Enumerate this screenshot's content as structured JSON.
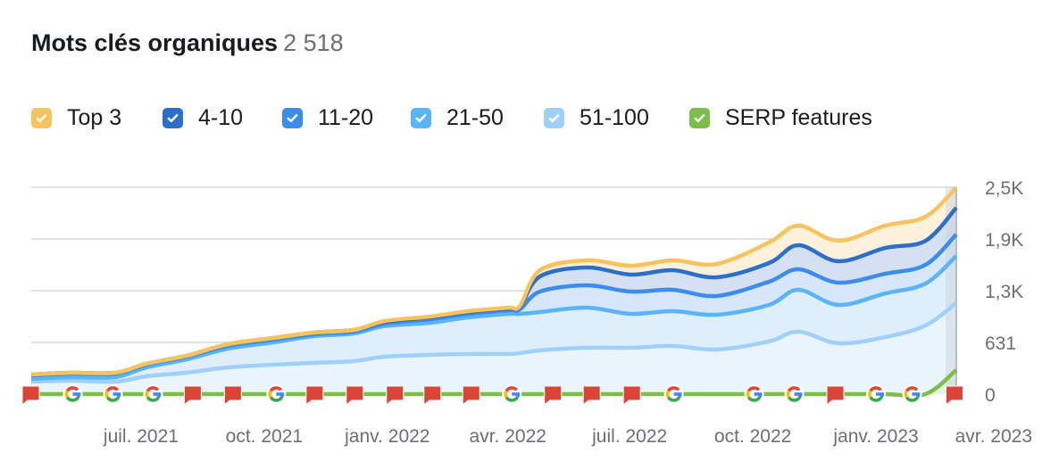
{
  "header": {
    "title": "Mots clés organiques",
    "count": "2 518"
  },
  "legend": [
    {
      "label": "Top 3",
      "color": "#f6c35c",
      "checked": true
    },
    {
      "label": "4-10",
      "color": "#2a6fc9",
      "checked": true
    },
    {
      "label": "11-20",
      "color": "#3b8ced",
      "checked": true
    },
    {
      "label": "21-50",
      "color": "#5ab4f9",
      "checked": true
    },
    {
      "label": "51-100",
      "color": "#9fd0fb",
      "checked": true
    },
    {
      "label": "SERP features",
      "color": "#7bbf4a",
      "checked": true
    }
  ],
  "chart_data": {
    "type": "area",
    "stacked_display": "cumulative",
    "x": [
      "2021-04-10",
      "2021-05-10",
      "2021-06-12",
      "2021-07-05",
      "2021-08-04",
      "2021-09-04",
      "2021-10-08",
      "2021-11-07",
      "2021-12-07",
      "2021-12-30",
      "2022-02-02",
      "2022-03-02",
      "2022-04-01",
      "2022-04-10",
      "2022-04-25",
      "2022-05-30",
      "2022-07-02",
      "2022-08-02",
      "2022-09-04",
      "2022-10-13",
      "2022-11-04",
      "2022-12-04",
      "2023-01-08",
      "2023-02-07",
      "2023-03-02"
    ],
    "series": [
      {
        "name": "Top 3",
        "color": "#f6c35c",
        "fill": "#fdf1dc",
        "values": [
          239,
          261,
          261,
          370,
          468,
          609,
          685,
          751,
          783,
          892,
          947,
          1012,
          1055,
          1077,
          1512,
          1632,
          1567,
          1632,
          1588,
          1850,
          2056,
          1871,
          2056,
          2165,
          2518
        ]
      },
      {
        "name": "4-10",
        "color": "#2a6fc9",
        "fill": "#d5e1f3",
        "values": [
          239,
          261,
          261,
          370,
          468,
          609,
          685,
          751,
          783,
          881,
          936,
          1001,
          1044,
          1066,
          1436,
          1545,
          1458,
          1512,
          1425,
          1599,
          1817,
          1621,
          1784,
          1871,
          2274
        ]
      },
      {
        "name": "11-20",
        "color": "#3b8ced",
        "fill": "#d6e7fb",
        "values": [
          228,
          250,
          250,
          359,
          457,
          588,
          664,
          729,
          762,
          860,
          914,
          979,
          1023,
          1034,
          1251,
          1327,
          1251,
          1273,
          1197,
          1371,
          1523,
          1360,
          1469,
          1578,
          1948
        ]
      },
      {
        "name": "21-50",
        "color": "#5ab4f9",
        "fill": "#ddeefc",
        "values": [
          185,
          207,
          207,
          326,
          424,
          555,
          631,
          707,
          740,
          830,
          870,
          935,
          979,
          979,
          1001,
          1055,
          979,
          1012,
          968,
          1088,
          1273,
          1088,
          1229,
          1349,
          1686
        ]
      },
      {
        "name": "51-100",
        "color": "#9fd0fb",
        "fill": "#eaf4fd",
        "values": [
          152,
          163,
          152,
          218,
          261,
          326,
          359,
          381,
          403,
          457,
          479,
          490,
          490,
          500,
          533,
          566,
          566,
          588,
          544,
          642,
          762,
          620,
          696,
          838,
          1110
        ]
      },
      {
        "name": "SERP features",
        "color": "#7bbf4a",
        "fill": "#e3f1d8",
        "values": [
          0,
          0,
          0,
          0,
          0,
          0,
          0,
          0,
          0,
          0,
          0,
          0,
          0,
          0,
          0,
          0,
          0,
          0,
          0,
          0,
          0,
          0,
          0,
          0,
          294
        ]
      }
    ],
    "y_axis": {
      "position": "right",
      "range": [
        0,
        2524
      ],
      "ticks": [
        {
          "value": 0,
          "label": "0"
        },
        {
          "value": 631,
          "label": "631"
        },
        {
          "value": 1262,
          "label": "1,3K"
        },
        {
          "value": 1893,
          "label": "1,9K"
        },
        {
          "value": 2524,
          "label": "2,5K"
        }
      ]
    },
    "x_axis": {
      "range": [
        "2021-04-10",
        "2023-03-02"
      ],
      "ticks": [
        {
          "date": "2021-07-01",
          "label": "juil. 2021"
        },
        {
          "date": "2021-10-01",
          "label": "oct. 2021"
        },
        {
          "date": "2022-01-01",
          "label": "janv. 2022"
        },
        {
          "date": "2022-04-01",
          "label": "avr. 2022"
        },
        {
          "date": "2022-07-01",
          "label": "juil. 2022"
        },
        {
          "date": "2022-10-01",
          "label": "oct. 2022"
        },
        {
          "date": "2023-01-01",
          "label": "janv. 2023"
        },
        {
          "date": "2023-04-01",
          "label": "avr. 2023"
        }
      ]
    },
    "grid": true,
    "hover_date": "2023-03-02",
    "events": [
      {
        "date": "2021-04-10",
        "type": "note"
      },
      {
        "date": "2021-05-11",
        "type": "google-update"
      },
      {
        "date": "2021-06-10",
        "type": "google-update"
      },
      {
        "date": "2021-07-10",
        "type": "google-update"
      },
      {
        "date": "2021-08-09",
        "type": "note"
      },
      {
        "date": "2021-09-08",
        "type": "note"
      },
      {
        "date": "2021-10-10",
        "type": "google-update"
      },
      {
        "date": "2021-11-08",
        "type": "note"
      },
      {
        "date": "2021-12-08",
        "type": "note"
      },
      {
        "date": "2022-01-07",
        "type": "note"
      },
      {
        "date": "2022-02-04",
        "type": "note"
      },
      {
        "date": "2022-03-05",
        "type": "note"
      },
      {
        "date": "2022-04-04",
        "type": "google-update"
      },
      {
        "date": "2022-05-05",
        "type": "note"
      },
      {
        "date": "2022-06-03",
        "type": "note"
      },
      {
        "date": "2022-07-03",
        "type": "note"
      },
      {
        "date": "2022-08-03",
        "type": "google-update"
      },
      {
        "date": "2022-10-02",
        "type": "google-update"
      },
      {
        "date": "2022-11-01",
        "type": "google-update"
      },
      {
        "date": "2022-12-02",
        "type": "note"
      },
      {
        "date": "2023-01-01",
        "type": "google-update"
      },
      {
        "date": "2023-01-28",
        "type": "google-update"
      },
      {
        "date": "2023-03-01",
        "type": "note"
      }
    ]
  }
}
